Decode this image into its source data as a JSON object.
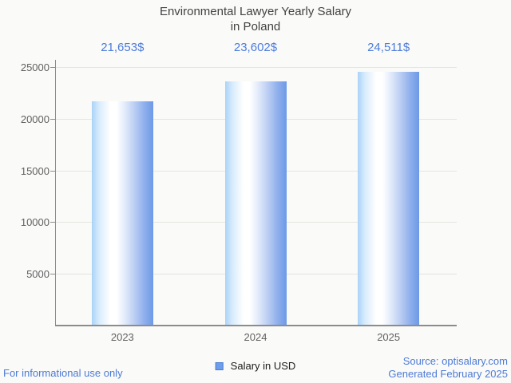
{
  "title": {
    "line1": "Environmental Lawyer Yearly Salary",
    "line2": "in Poland"
  },
  "chart_data": {
    "type": "bar",
    "title": "Environmental Lawyer Yearly Salary in Poland",
    "categories": [
      "2023",
      "2024",
      "2025"
    ],
    "values": [
      21653,
      23602,
      24511
    ],
    "value_labels": [
      "21,653$",
      "23,602$",
      "24,511$"
    ],
    "series": [
      {
        "name": "Salary in USD",
        "values": [
          21653,
          23602,
          24511
        ]
      }
    ],
    "xlabel": "",
    "ylabel": "",
    "ylim": [
      0,
      25000
    ],
    "yticks": [
      5000,
      10000,
      15000,
      20000,
      25000
    ],
    "grid": "horizontal",
    "legend_position": "bottom-center"
  },
  "legend": {
    "label": "Salary in USD",
    "swatch_color": "#6d9eeb"
  },
  "footer": {
    "disclaimer": "For informational use only",
    "source": "Source: optisalary.com",
    "generated": "Generated February 2025"
  },
  "colors": {
    "background": "#fafaf8",
    "title_text": "#424242",
    "axis_text": "#616161",
    "axis_line": "#8c8c8c",
    "gridline": "#e4e4e1",
    "value_label_text": "#4d7cdb",
    "footer_text": "#4d7bd6",
    "bar_edge_left": "#a9d3f8",
    "bar_center": "#ffffff",
    "bar_edge_right": "#6d99e6"
  }
}
